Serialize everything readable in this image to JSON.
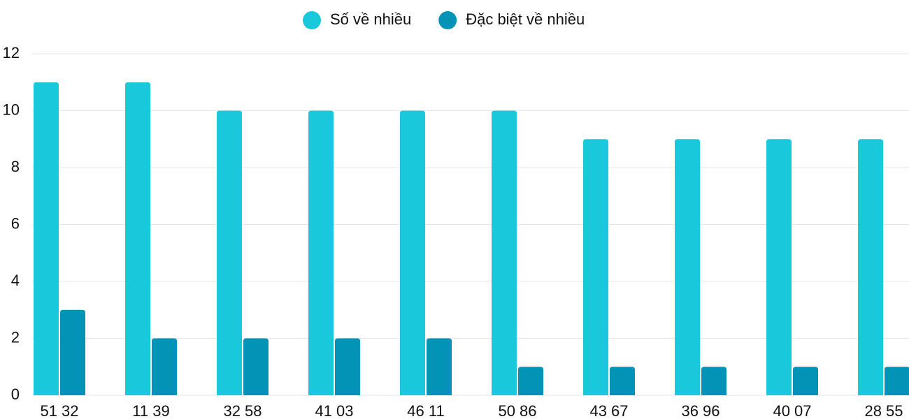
{
  "chart_data": {
    "type": "bar",
    "categories": [
      "51 32",
      "11 39",
      "32 58",
      "41 03",
      "46 11",
      "50 86",
      "43 67",
      "36 96",
      "40 07",
      "28 55"
    ],
    "series": [
      {
        "name": "Số về nhiều",
        "color": "#1ac8db",
        "values": [
          11,
          11,
          10,
          10,
          10,
          10,
          9,
          9,
          9,
          9
        ]
      },
      {
        "name": "Đặc biệt về nhiều",
        "color": "#0393b6",
        "values": [
          3,
          2,
          2,
          2,
          2,
          1,
          1,
          1,
          1,
          1
        ]
      }
    ],
    "ylim": [
      0,
      12
    ],
    "yticks": [
      0,
      2,
      4,
      6,
      8,
      10,
      12
    ],
    "grid": true,
    "legend": "top"
  }
}
